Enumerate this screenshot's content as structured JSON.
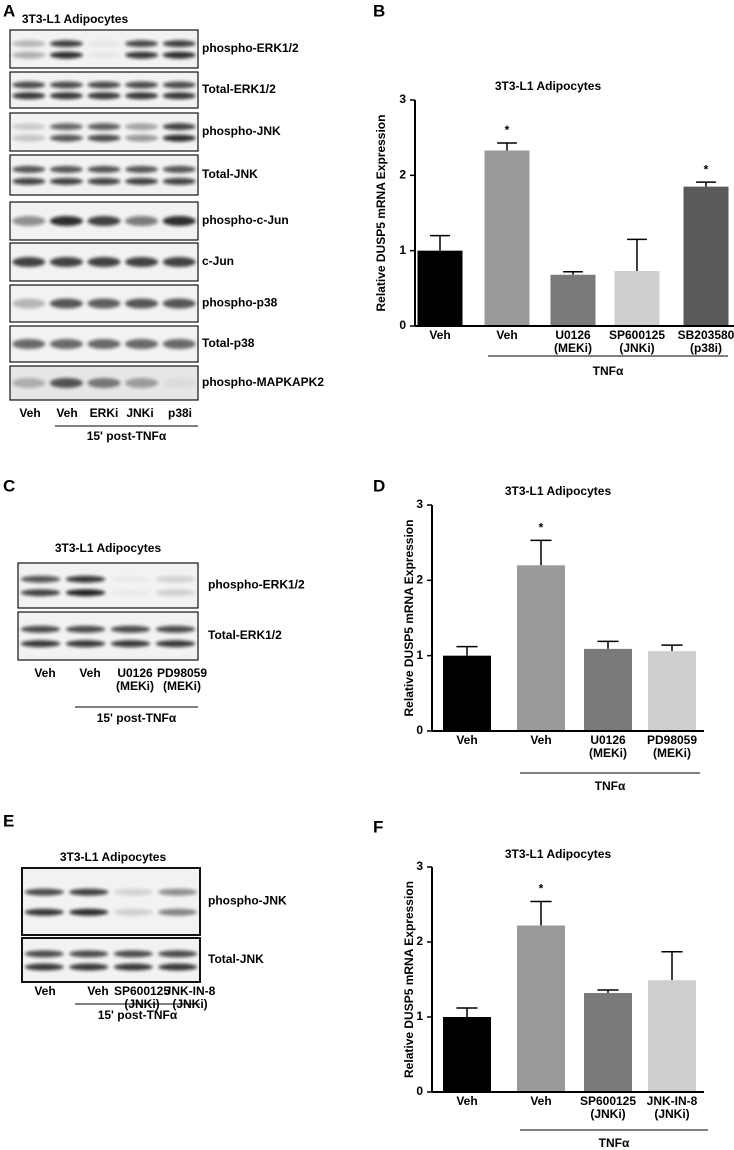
{
  "panel_labels": [
    "A",
    "B",
    "C",
    "D",
    "E",
    "F"
  ],
  "blots": [
    {
      "title": "3T3-L1 Adipocytes",
      "rows": [
        "phospho-ERK1/2",
        "Total-ERK1/2",
        "phospho-JNK",
        "Total-JNK",
        "phospho-c-Jun",
        "c-Jun",
        "phospho-p38",
        "Total-p38",
        "phospho-MAPKAPK2"
      ],
      "lanes": [
        "Veh",
        "Veh",
        "ERKi",
        "JNKi",
        "p38i"
      ],
      "group_label": "15' post-TNFα"
    },
    {
      "title": "3T3-L1 Adipocytes",
      "rows": [
        "phospho-ERK1/2",
        "Total-ERK1/2"
      ],
      "lanes": [
        "Veh",
        "Veh",
        "U0126\n(MEKi)",
        "PD98059\n(MEKi)"
      ],
      "group_label": "15' post-TNFα"
    },
    {
      "title": "3T3-L1 Adipocytes",
      "rows": [
        "phospho-JNK",
        "Total-JNK"
      ],
      "lanes": [
        "Veh",
        "Veh",
        "SP600125\n(JNKi)",
        "JNK-IN-8\n(JNKi)"
      ],
      "group_label": "15' post-TNFα"
    }
  ],
  "chart_data": [
    {
      "type": "bar",
      "title": "3T3-L1 Adipocytes",
      "y_label": "Relative DUSP5 mRNA Expression",
      "categories": [
        "Veh",
        "Veh",
        "U0126\n(MEKi)",
        "SP600125\n(JNKi)",
        "SB203580\n(p38i)"
      ],
      "values": [
        1.0,
        2.33,
        0.68,
        0.73,
        1.85
      ],
      "errors": [
        0.2,
        0.1,
        0.04,
        0.42,
        0.06
      ],
      "colors": [
        "#000000",
        "#9a9a9a",
        "#7a7a7a",
        "#cfcfcf",
        "#5a5a5a"
      ],
      "significant": [
        false,
        true,
        false,
        false,
        true
      ],
      "significance_label": "*",
      "group_label": "TNFα",
      "ylim": [
        0,
        3
      ],
      "yticks": [
        0,
        1,
        2,
        3
      ]
    },
    {
      "type": "bar",
      "title": "3T3-L1 Adipocytes",
      "y_label": "Relative DUSP5 mRNA Expression",
      "categories": [
        "Veh",
        "Veh",
        "U0126\n(MEKi)",
        "PD98059\n(MEKi)"
      ],
      "values": [
        1.0,
        2.2,
        1.09,
        1.06
      ],
      "errors": [
        0.12,
        0.33,
        0.1,
        0.08
      ],
      "colors": [
        "#000000",
        "#9a9a9a",
        "#7a7a7a",
        "#cfcfcf"
      ],
      "significant": [
        false,
        true,
        false,
        false
      ],
      "significance_label": "*",
      "group_label": "TNFα",
      "ylim": [
        0,
        3
      ],
      "yticks": [
        0,
        1,
        2,
        3
      ]
    },
    {
      "type": "bar",
      "title": "3T3-L1 Adipocytes",
      "y_label": "Relative DUSP5 mRNA Expression",
      "categories": [
        "Veh",
        "Veh",
        "SP600125\n(JNKi)",
        "JNK-IN-8\n(JNKi)"
      ],
      "values": [
        1.0,
        2.22,
        1.32,
        1.49
      ],
      "errors": [
        0.12,
        0.32,
        0.04,
        0.38
      ],
      "colors": [
        "#000000",
        "#9a9a9a",
        "#7a7a7a",
        "#cfcfcf"
      ],
      "significant": [
        false,
        true,
        false,
        false
      ],
      "significance_label": "*",
      "group_label": "TNFα",
      "ylim": [
        0,
        3
      ],
      "yticks": [
        0,
        1,
        2,
        3
      ]
    }
  ]
}
